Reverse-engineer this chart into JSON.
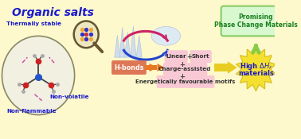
{
  "bg_color": "#fef9cc",
  "title": "Organic salts",
  "title_color": "#1a1acc",
  "title_fontsize": 10,
  "left_label_color": "#1a1acc",
  "label_thermally": "Thermally stable",
  "label_nonflammable": "Non-flammable",
  "label_nonvolatile": "Non-volatile",
  "hbonds_label": "H-bonds",
  "hbonds_bg": "#dd7755",
  "hbonds_text": "#ffffff",
  "prop_linear": "Linear",
  "prop_short": "Short",
  "prop_charge": "Charge-assisted",
  "prop_energy": "Energetically favourable motifs",
  "props_bg": "#f8c8d4",
  "props_text_color": "#333333",
  "high_text1": "High ",
  "high_text2": "materials",
  "high_text_color": "#1a1acc",
  "high_bg": "#f5e030",
  "promising_label": "Promising\nPhase Change Materials",
  "promising_text_color": "#1a8020",
  "promising_bg": "#d8f8d0",
  "promising_border": "#88cc66",
  "arrow_orange": "#e87820",
  "arrow_yellow": "#ddcc22",
  "arrow_green": "#88cc44",
  "circle_edge": "#888866",
  "mol_center": "#2255cc",
  "mol_arm": "#cc2222",
  "mol_bond": "#444444",
  "hbond_color": "#cc44aa",
  "crystal_color": "#c8d8f0",
  "liquid_color": "#d8e8f8",
  "arc_solid_liquid": "#cc2266",
  "arc_liquid_solid": "#2244cc"
}
